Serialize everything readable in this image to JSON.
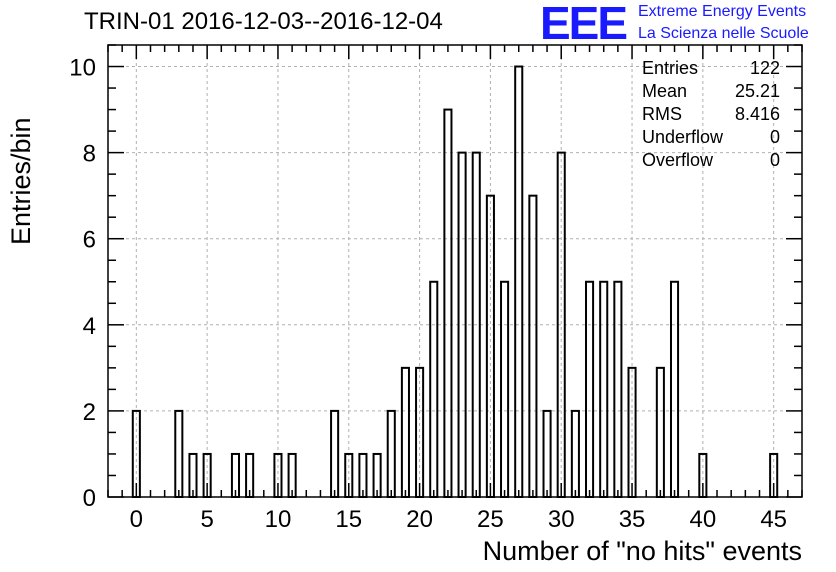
{
  "header": {
    "title": "TRIN-01 2016-12-03--2016-12-04",
    "logo_text": "EEE",
    "logo_line1": "Extreme Energy Events",
    "logo_line2": "La Scienza nelle Scuole",
    "logo_color": "#1a1aff"
  },
  "stats": [
    {
      "label": "Entries",
      "value": "122"
    },
    {
      "label": "Mean",
      "value": "25.21"
    },
    {
      "label": "RMS",
      "value": "8.416"
    },
    {
      "label": "Underflow",
      "value": "0"
    },
    {
      "label": "Overflow",
      "value": "0"
    }
  ],
  "chart_data": {
    "type": "bar",
    "title": "TRIN-01 2016-12-03--2016-12-04",
    "xlabel": "Number of \"no hits\" events",
    "ylabel": "Entries/bin",
    "xlim": [
      -2,
      47
    ],
    "ylim": [
      0,
      10.5
    ],
    "bin_width": 0.5,
    "grid": true,
    "x_ticks": [
      0,
      5,
      10,
      15,
      20,
      25,
      30,
      35,
      40,
      45
    ],
    "y_ticks": [
      0,
      2,
      4,
      6,
      8,
      10
    ],
    "bins": [
      {
        "x": 0,
        "value": 2
      },
      {
        "x": 3,
        "value": 2
      },
      {
        "x": 4,
        "value": 1
      },
      {
        "x": 5,
        "value": 1
      },
      {
        "x": 7,
        "value": 1
      },
      {
        "x": 8,
        "value": 1
      },
      {
        "x": 10,
        "value": 1
      },
      {
        "x": 11,
        "value": 1
      },
      {
        "x": 14,
        "value": 2
      },
      {
        "x": 15,
        "value": 1
      },
      {
        "x": 16,
        "value": 1
      },
      {
        "x": 17,
        "value": 1
      },
      {
        "x": 18,
        "value": 2
      },
      {
        "x": 19,
        "value": 3
      },
      {
        "x": 20,
        "value": 3
      },
      {
        "x": 21,
        "value": 5
      },
      {
        "x": 22,
        "value": 9
      },
      {
        "x": 23,
        "value": 8
      },
      {
        "x": 24,
        "value": 8
      },
      {
        "x": 25,
        "value": 7
      },
      {
        "x": 26,
        "value": 5
      },
      {
        "x": 27,
        "value": 10
      },
      {
        "x": 28,
        "value": 7
      },
      {
        "x": 29,
        "value": 2
      },
      {
        "x": 30,
        "value": 8
      },
      {
        "x": 31,
        "value": 2
      },
      {
        "x": 32,
        "value": 5
      },
      {
        "x": 33,
        "value": 5
      },
      {
        "x": 34,
        "value": 5
      },
      {
        "x": 35,
        "value": 3
      },
      {
        "x": 37,
        "value": 3
      },
      {
        "x": 38,
        "value": 5
      },
      {
        "x": 40,
        "value": 1
      },
      {
        "x": 45,
        "value": 1
      }
    ]
  }
}
